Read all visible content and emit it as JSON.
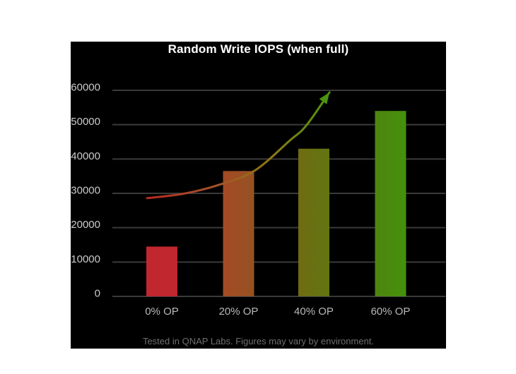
{
  "panel": {
    "background": "#000000",
    "page_background": "#ffffff"
  },
  "chart_data": {
    "type": "bar",
    "title": "Random Write IOPS (when full)",
    "categories": [
      "0% OP",
      "20% OP",
      "40% OP",
      "60% OP"
    ],
    "values": [
      14500,
      36500,
      43000,
      54000
    ],
    "bar_colors": [
      [
        "#c1272e",
        "#c1272e"
      ],
      [
        "#a54a25",
        "#955221"
      ],
      [
        "#6f6c13",
        "#637511"
      ],
      [
        "#4e850f",
        "#45910c"
      ]
    ],
    "xlabel": "",
    "ylabel": "",
    "ylim": [
      0,
      60000
    ],
    "ytick_step": 10000,
    "yticks": [
      "0",
      "10000",
      "20000",
      "30000",
      "40000",
      "50000",
      "60000"
    ],
    "grid": true,
    "legend": "none",
    "trend": {
      "type": "curved-arrow",
      "description": "exponential growth curve with arrowhead, red-to-green gradient",
      "samples": [
        [
          0.104,
          28600
        ],
        [
          0.214,
          29900
        ],
        [
          0.321,
          32500
        ],
        [
          0.427,
          36600
        ],
        [
          0.533,
          45400
        ],
        [
          0.582,
          49700
        ],
        [
          0.652,
          59400
        ]
      ],
      "gradient_stops": [
        [
          "0",
          "#b42a1e"
        ],
        [
          "0.35",
          "#a4502a"
        ],
        [
          "0.7",
          "#8b7a12"
        ],
        [
          "1",
          "#4a930e"
        ]
      ],
      "arrow_color": "#4a930e"
    },
    "footnote": "Tested in QNAP Labs. Figures may vary by environment.",
    "colors": {
      "title_text": "#ffffff",
      "gridline": "#3a3a3a",
      "y_tick_text": "#cbcbcb",
      "x_tick_text": "#b9b9b9",
      "footnote_text": "#6f6f6f"
    }
  }
}
